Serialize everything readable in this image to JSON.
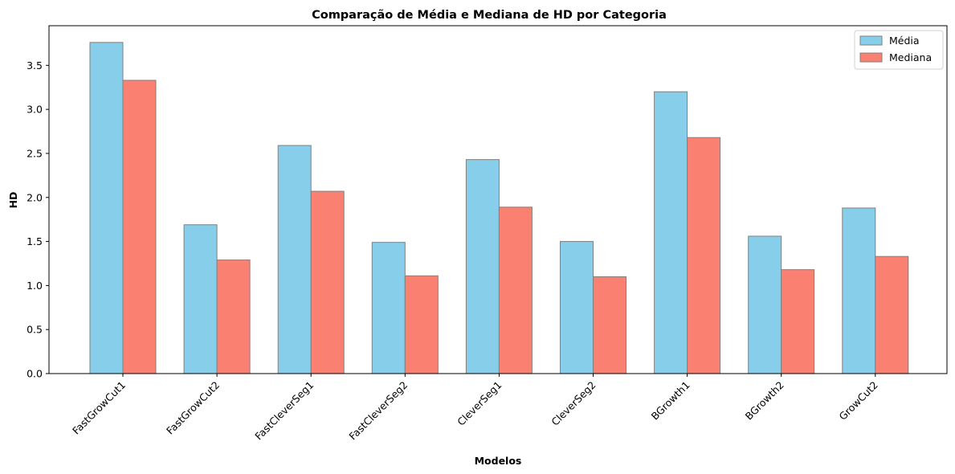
{
  "chart_data": {
    "type": "bar",
    "title": "Comparação de Média e Mediana de HD por Categoria",
    "xlabel": "Modelos",
    "ylabel": "HD",
    "categories": [
      "FastGrowCut1",
      "FastGrowCut2",
      "FastCleverSeg1",
      "FastCleverSeg2",
      "CleverSeg1",
      "CleverSeg2",
      "BGrowth1",
      "BGrowth2",
      "GrowCut2"
    ],
    "series": [
      {
        "name": "Média",
        "color": "#87ceeb",
        "values": [
          3.76,
          1.69,
          2.59,
          1.49,
          2.43,
          1.5,
          3.2,
          1.56,
          1.88
        ]
      },
      {
        "name": "Mediana",
        "color": "#fa8072",
        "values": [
          3.33,
          1.29,
          2.07,
          1.11,
          1.89,
          1.1,
          2.68,
          1.18,
          1.33
        ]
      }
    ],
    "ylim": [
      0,
      3.95
    ],
    "yticks": [
      "0.0",
      "0.5",
      "1.0",
      "1.5",
      "2.0",
      "2.5",
      "3.0",
      "3.5"
    ],
    "grid": false,
    "legend": "top-right"
  }
}
